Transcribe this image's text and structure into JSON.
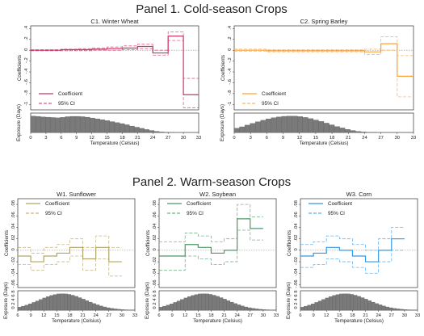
{
  "panel1": {
    "title": "Panel 1. Cold-season Crops"
  },
  "panel2": {
    "title": "Panel 2. Warm-season Crops"
  },
  "axis_labels": {
    "coef_ylabel": "Coefficients",
    "exp_ylabel": "Exposure (Days)",
    "xlabel": "Temperature (Celsius)",
    "legend_coef": "Coefficient",
    "legend_ci": "95% CI"
  },
  "colors": {
    "winter_wheat": "#cc3366",
    "spring_barley": "#ffa033",
    "sunflower": "#b3a366",
    "soybean": "#4d9966",
    "corn": "#3399e6",
    "histogram_fill": "#7a7a7a",
    "zero_line": "#888888"
  },
  "chart_data": [
    {
      "id": "c1",
      "type": "line",
      "subtype": "step-with-exposure-histogram",
      "title": "C1. Winter Wheat",
      "color": "#cc3366",
      "bin_edges": [
        0,
        3,
        6,
        9,
        12,
        15,
        18,
        21,
        24,
        27,
        30,
        33
      ],
      "xticks": [
        0,
        3,
        6,
        9,
        12,
        15,
        18,
        21,
        24,
        27,
        30,
        33
      ],
      "coef": [
        0,
        0,
        0.01,
        0.01,
        0.02,
        0.03,
        0.04,
        0.07,
        -0.05,
        0.26,
        -0.82
      ],
      "ci_low": [
        -0.01,
        -0.01,
        -0.01,
        -0.01,
        0,
        0,
        0.01,
        0.03,
        -0.09,
        0.18,
        -1.06
      ],
      "ci_high": [
        0.01,
        0.01,
        0.02,
        0.03,
        0.04,
        0.06,
        0.08,
        0.11,
        0,
        0.34,
        -0.52
      ],
      "ylim": [
        -1.1,
        0.45
      ],
      "yticks": [
        "-1",
        "-.8",
        "-.6",
        "-.4",
        "-.2",
        "0",
        ".2",
        ".4"
      ],
      "ytick_values": [
        -1,
        -0.8,
        -0.6,
        -0.4,
        -0.2,
        0,
        0.2,
        0.4
      ],
      "exposure_hist": [
        10,
        9.8,
        9.5,
        9.3,
        9.1,
        8.9,
        9.2,
        9.6,
        9.8,
        9.8,
        9.6,
        9.3,
        8.8,
        8.3,
        7.8,
        7.2,
        6.6,
        6.0,
        5.4,
        4.7,
        3.9,
        3.2,
        2.5,
        1.8,
        1.2,
        0.7,
        0.35,
        0.15,
        0.06,
        0.02,
        0,
        0,
        0,
        0
      ],
      "exposure_ylabel": "Exposure (Days)",
      "xlabel": "Temperature (Celsius)"
    },
    {
      "id": "c2",
      "type": "line",
      "subtype": "step-with-exposure-histogram",
      "title": "C2. Spring Barley",
      "color": "#ffa033",
      "bin_edges": [
        0,
        3,
        6,
        9,
        12,
        15,
        18,
        21,
        24,
        27,
        30,
        33
      ],
      "xticks": [
        0,
        3,
        6,
        9,
        12,
        15,
        18,
        21,
        24,
        27,
        30,
        33
      ],
      "coef": [
        0,
        0,
        -0.01,
        -0.01,
        -0.01,
        -0.01,
        -0.01,
        -0.01,
        -0.03,
        0.12,
        -0.48
      ],
      "ci_low": [
        -0.02,
        -0.02,
        -0.03,
        -0.03,
        -0.03,
        -0.03,
        -0.03,
        -0.03,
        -0.08,
        0.0,
        -0.86
      ],
      "ci_high": [
        0.02,
        0.02,
        0.01,
        0.01,
        0.01,
        0.01,
        0.01,
        0.01,
        0.02,
        0.25,
        -0.1
      ],
      "ylim": [
        -1.1,
        0.45
      ],
      "yticks": [
        "-1",
        "-.8",
        "-.6",
        "-.4",
        "-.2",
        "0",
        ".2",
        ".4"
      ],
      "ytick_values": [
        -1,
        -0.8,
        -0.6,
        -0.4,
        -0.2,
        0,
        0.2,
        0.4
      ],
      "exposure_hist": [
        1.5,
        2.0,
        2.6,
        3.2,
        3.8,
        4.3,
        4.8,
        5.2,
        5.5,
        5.7,
        5.8,
        5.8,
        5.6,
        5.3,
        4.9,
        4.4,
        3.9,
        3.3,
        2.7,
        2.1,
        1.6,
        1.1,
        0.7,
        0.4,
        0.2,
        0.1,
        0.04,
        0.02,
        0,
        0,
        0,
        0,
        0,
        0
      ],
      "exposure_ylabel": "Exposure (Days)",
      "xlabel": "Temperature (Celsius)"
    },
    {
      "id": "w1",
      "type": "line",
      "subtype": "step-with-exposure-histogram",
      "title": "W1. Sunflower",
      "color": "#b3a366",
      "bin_edges": [
        6,
        9,
        12,
        15,
        18,
        21,
        24,
        27,
        30,
        33
      ],
      "xticks": [
        6,
        9,
        12,
        15,
        18,
        21,
        24,
        27,
        30,
        33
      ],
      "coef": [
        -0.01,
        -0.02,
        -0.01,
        -0.005,
        0.005,
        -0.015,
        0.005,
        -0.02
      ],
      "ci_low": [
        -0.025,
        -0.035,
        -0.025,
        -0.02,
        -0.01,
        -0.035,
        -0.015,
        -0.045
      ],
      "ci_high": [
        0.005,
        -0.005,
        0.005,
        0.01,
        0.02,
        0.005,
        0.025,
        0.005
      ],
      "bins_used": [
        [
          6,
          9
        ],
        [
          9,
          12
        ],
        [
          12,
          15
        ],
        [
          15,
          18
        ],
        [
          18,
          21
        ],
        [
          21,
          24
        ],
        [
          24,
          27
        ],
        [
          27,
          30
        ]
      ],
      "ylim": [
        -0.065,
        0.09
      ],
      "yticks": [
        "-.06",
        "-.04",
        "-.02",
        "0",
        ".02",
        ".04",
        ".06",
        ".08"
      ],
      "ytick_values": [
        -0.06,
        -0.04,
        -0.02,
        0,
        0.02,
        0.04,
        0.06,
        0.08
      ],
      "exposure_ylabel": "Exposure (Days)",
      "xlabel": "Temperature (Celsius)",
      "exposure_yticks": [
        "0",
        "2",
        "4",
        "6",
        "8"
      ]
    },
    {
      "id": "w2",
      "type": "line",
      "subtype": "step-with-exposure-histogram",
      "title": "W2. Soybean",
      "color": "#4d9966",
      "bin_edges": [
        6,
        9,
        12,
        15,
        18,
        21,
        24,
        27,
        30,
        33
      ],
      "xticks": [
        6,
        9,
        12,
        15,
        18,
        21,
        24,
        27,
        30,
        33
      ],
      "coef": [
        -0.01,
        -0.01,
        0.01,
        0.005,
        -0.005,
        0.0,
        0.055,
        0.038
      ],
      "ci_low": [
        -0.035,
        -0.035,
        -0.01,
        -0.015,
        -0.025,
        -0.02,
        0.035,
        0.018
      ],
      "ci_high": [
        0.015,
        0.015,
        0.03,
        0.025,
        0.015,
        0.02,
        0.08,
        0.058
      ],
      "bins_used": [
        [
          6,
          9
        ],
        [
          9,
          12
        ],
        [
          12,
          15
        ],
        [
          15,
          18
        ],
        [
          18,
          21
        ],
        [
          21,
          24
        ],
        [
          24,
          27
        ],
        [
          27,
          30
        ]
      ],
      "ylim": [
        -0.065,
        0.09
      ],
      "yticks": [
        "-.06",
        "-.04",
        "-.02",
        "0",
        ".02",
        ".04",
        ".06",
        ".08"
      ],
      "ytick_values": [
        -0.06,
        -0.04,
        -0.02,
        0,
        0.02,
        0.04,
        0.06,
        0.08
      ],
      "exposure_ylabel": "Exposure (Days)",
      "xlabel": "Temperature (Celsius)",
      "exposure_yticks": [
        "0",
        "2",
        "4",
        "6",
        "8"
      ]
    },
    {
      "id": "w3",
      "type": "line",
      "subtype": "step-with-exposure-histogram",
      "title": "W3. Corn",
      "color": "#3399e6",
      "bin_edges": [
        6,
        9,
        12,
        15,
        18,
        21,
        24,
        27,
        30,
        33
      ],
      "xticks": [
        6,
        9,
        12,
        15,
        18,
        21,
        24,
        27,
        30,
        33
      ],
      "coef": [
        -0.01,
        -0.005,
        0.005,
        0.0,
        -0.01,
        -0.02,
        0.0,
        0.02
      ],
      "ci_low": [
        -0.03,
        -0.025,
        -0.015,
        -0.02,
        -0.03,
        -0.04,
        -0.02,
        0.0
      ],
      "ci_high": [
        0.01,
        0.015,
        0.025,
        0.02,
        0.01,
        0.0,
        0.02,
        0.04
      ],
      "bins_used": [
        [
          6,
          9
        ],
        [
          9,
          12
        ],
        [
          12,
          15
        ],
        [
          15,
          18
        ],
        [
          18,
          21
        ],
        [
          21,
          24
        ],
        [
          24,
          27
        ],
        [
          27,
          30
        ]
      ],
      "ylim": [
        -0.065,
        0.09
      ],
      "yticks": [
        "-.06",
        "-.04",
        "-.02",
        "0",
        ".02",
        ".04",
        ".06",
        ".08"
      ],
      "ytick_values": [
        -0.06,
        -0.04,
        -0.02,
        0,
        0.02,
        0.04,
        0.06,
        0.08
      ],
      "exposure_ylabel": "Exposure (Days)",
      "xlabel": "Temperature (Celsius)",
      "exposure_yticks": [
        "0",
        "2",
        "4",
        "6",
        "8"
      ]
    }
  ]
}
